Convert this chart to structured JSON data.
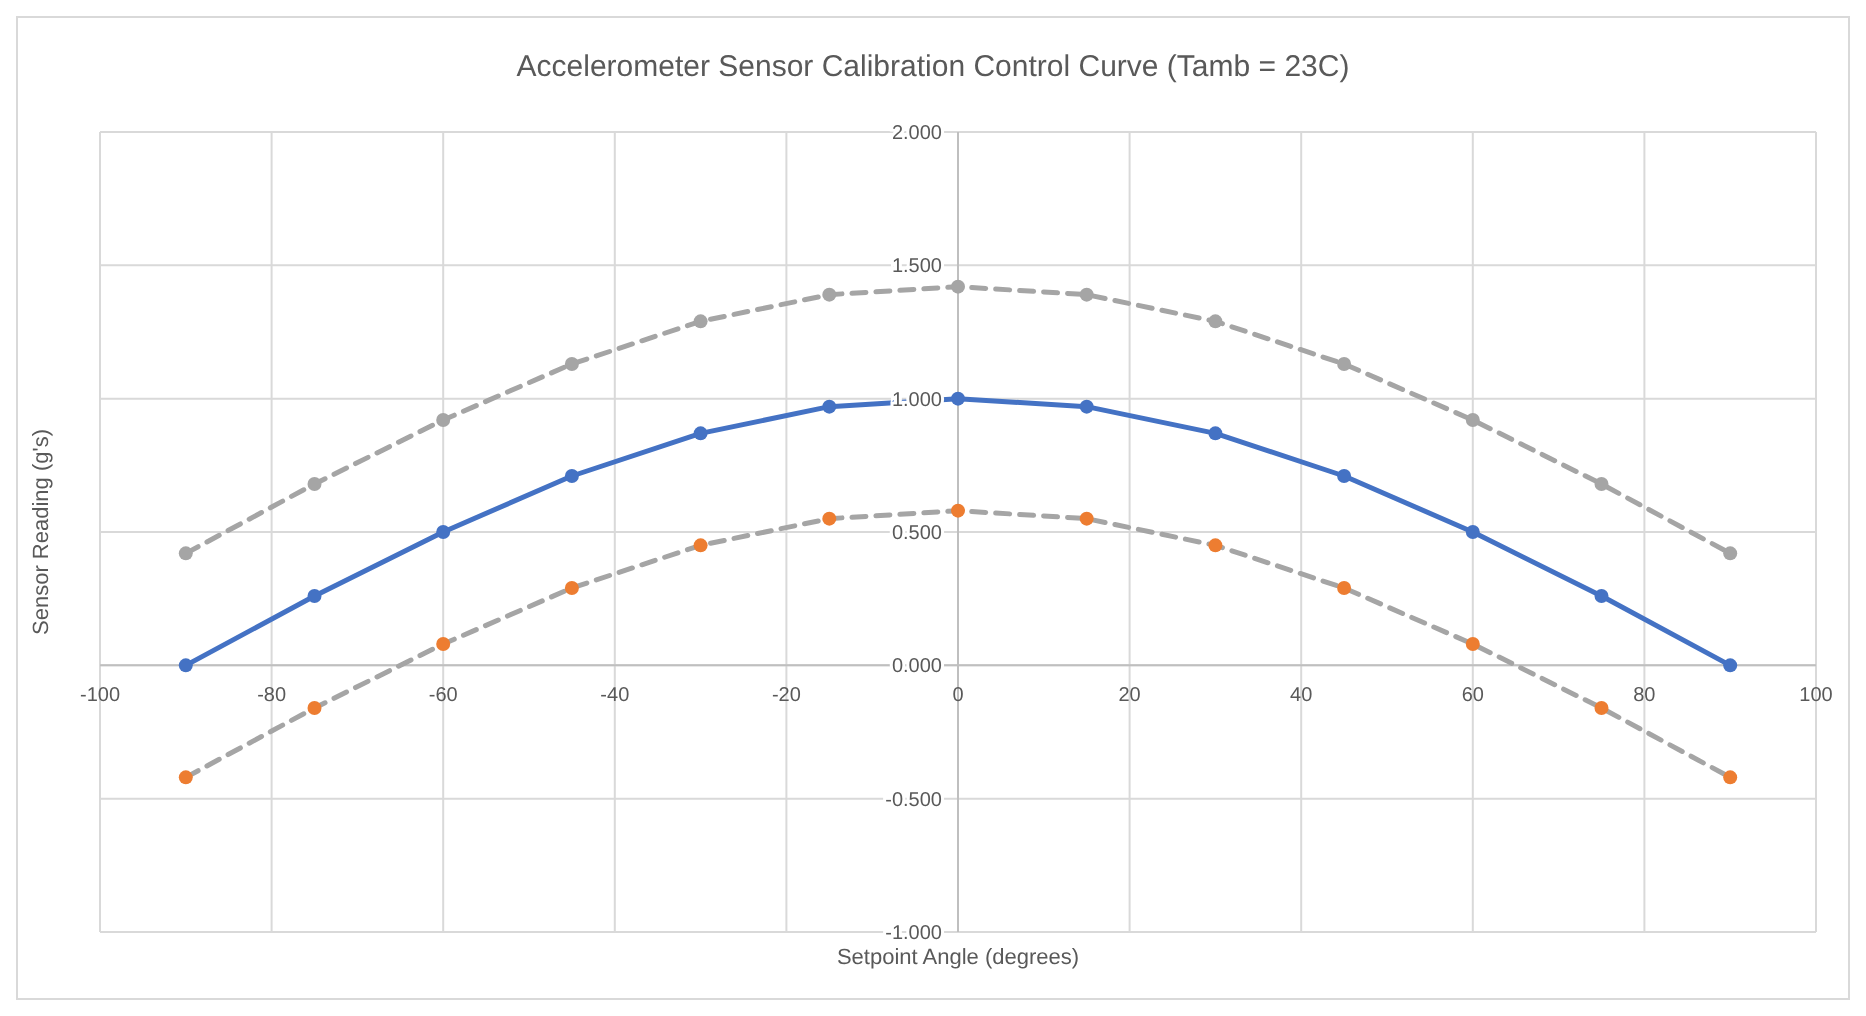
{
  "chart_data": {
    "type": "line",
    "title": "Accelerometer Sensor Calibration Control Curve (Tamb = 23C)",
    "xlabel": "Setpoint Angle (degrees)",
    "ylabel": "Sensor Reading (g's)",
    "x": [
      -90,
      -75,
      -60,
      -45,
      -30,
      -15,
      0,
      15,
      30,
      45,
      60,
      75,
      90
    ],
    "series": [
      {
        "color": "#a5a5a5",
        "line_style": "dashed",
        "values": [
          0.42,
          0.68,
          0.92,
          1.13,
          1.29,
          1.39,
          1.42,
          1.39,
          1.29,
          1.13,
          0.92,
          0.68,
          0.42
        ]
      },
      {
        "color": "#4472c4",
        "line_style": "solid",
        "values": [
          0,
          0.26,
          0.5,
          0.71,
          0.87,
          0.97,
          1,
          0.97,
          0.87,
          0.71,
          0.5,
          0.26,
          0
        ]
      },
      {
        "color": "#a5a5a5",
        "line_style": "dashed",
        "colors": [
          "#ed7d31",
          "#ed7d31",
          "#ed7d31",
          "#ed7d31",
          "#ed7d31",
          "#ed7d31",
          "#ed7d31",
          "#ed7d31",
          "#ed7d31",
          "#ed7d31",
          "#ed7d31",
          "#ed7d31",
          "#ed7d31"
        ],
        "values": [
          -0.42,
          -0.16,
          0.08,
          0.29,
          0.45,
          0.55,
          0.58,
          0.55,
          0.45,
          0.29,
          0.08,
          -0.16,
          -0.42
        ]
      }
    ],
    "xlim": [
      -100,
      100
    ],
    "xticks": [
      -100,
      -80,
      -60,
      -40,
      -20,
      0,
      20,
      40,
      60,
      80,
      100
    ],
    "ylim": [
      -1,
      2
    ],
    "yticks": [
      {
        "value": -1,
        "label": "-1.000"
      },
      {
        "value": -0.5,
        "label": "-0.500"
      },
      {
        "value": 0,
        "label": "0.000"
      },
      {
        "value": 0.5,
        "label": "0.500"
      },
      {
        "value": 1,
        "label": "1.000"
      },
      {
        "value": 1.5,
        "label": "1.500"
      },
      {
        "value": 2,
        "label": "2.000"
      }
    ],
    "grid": true,
    "marker": "circle"
  }
}
